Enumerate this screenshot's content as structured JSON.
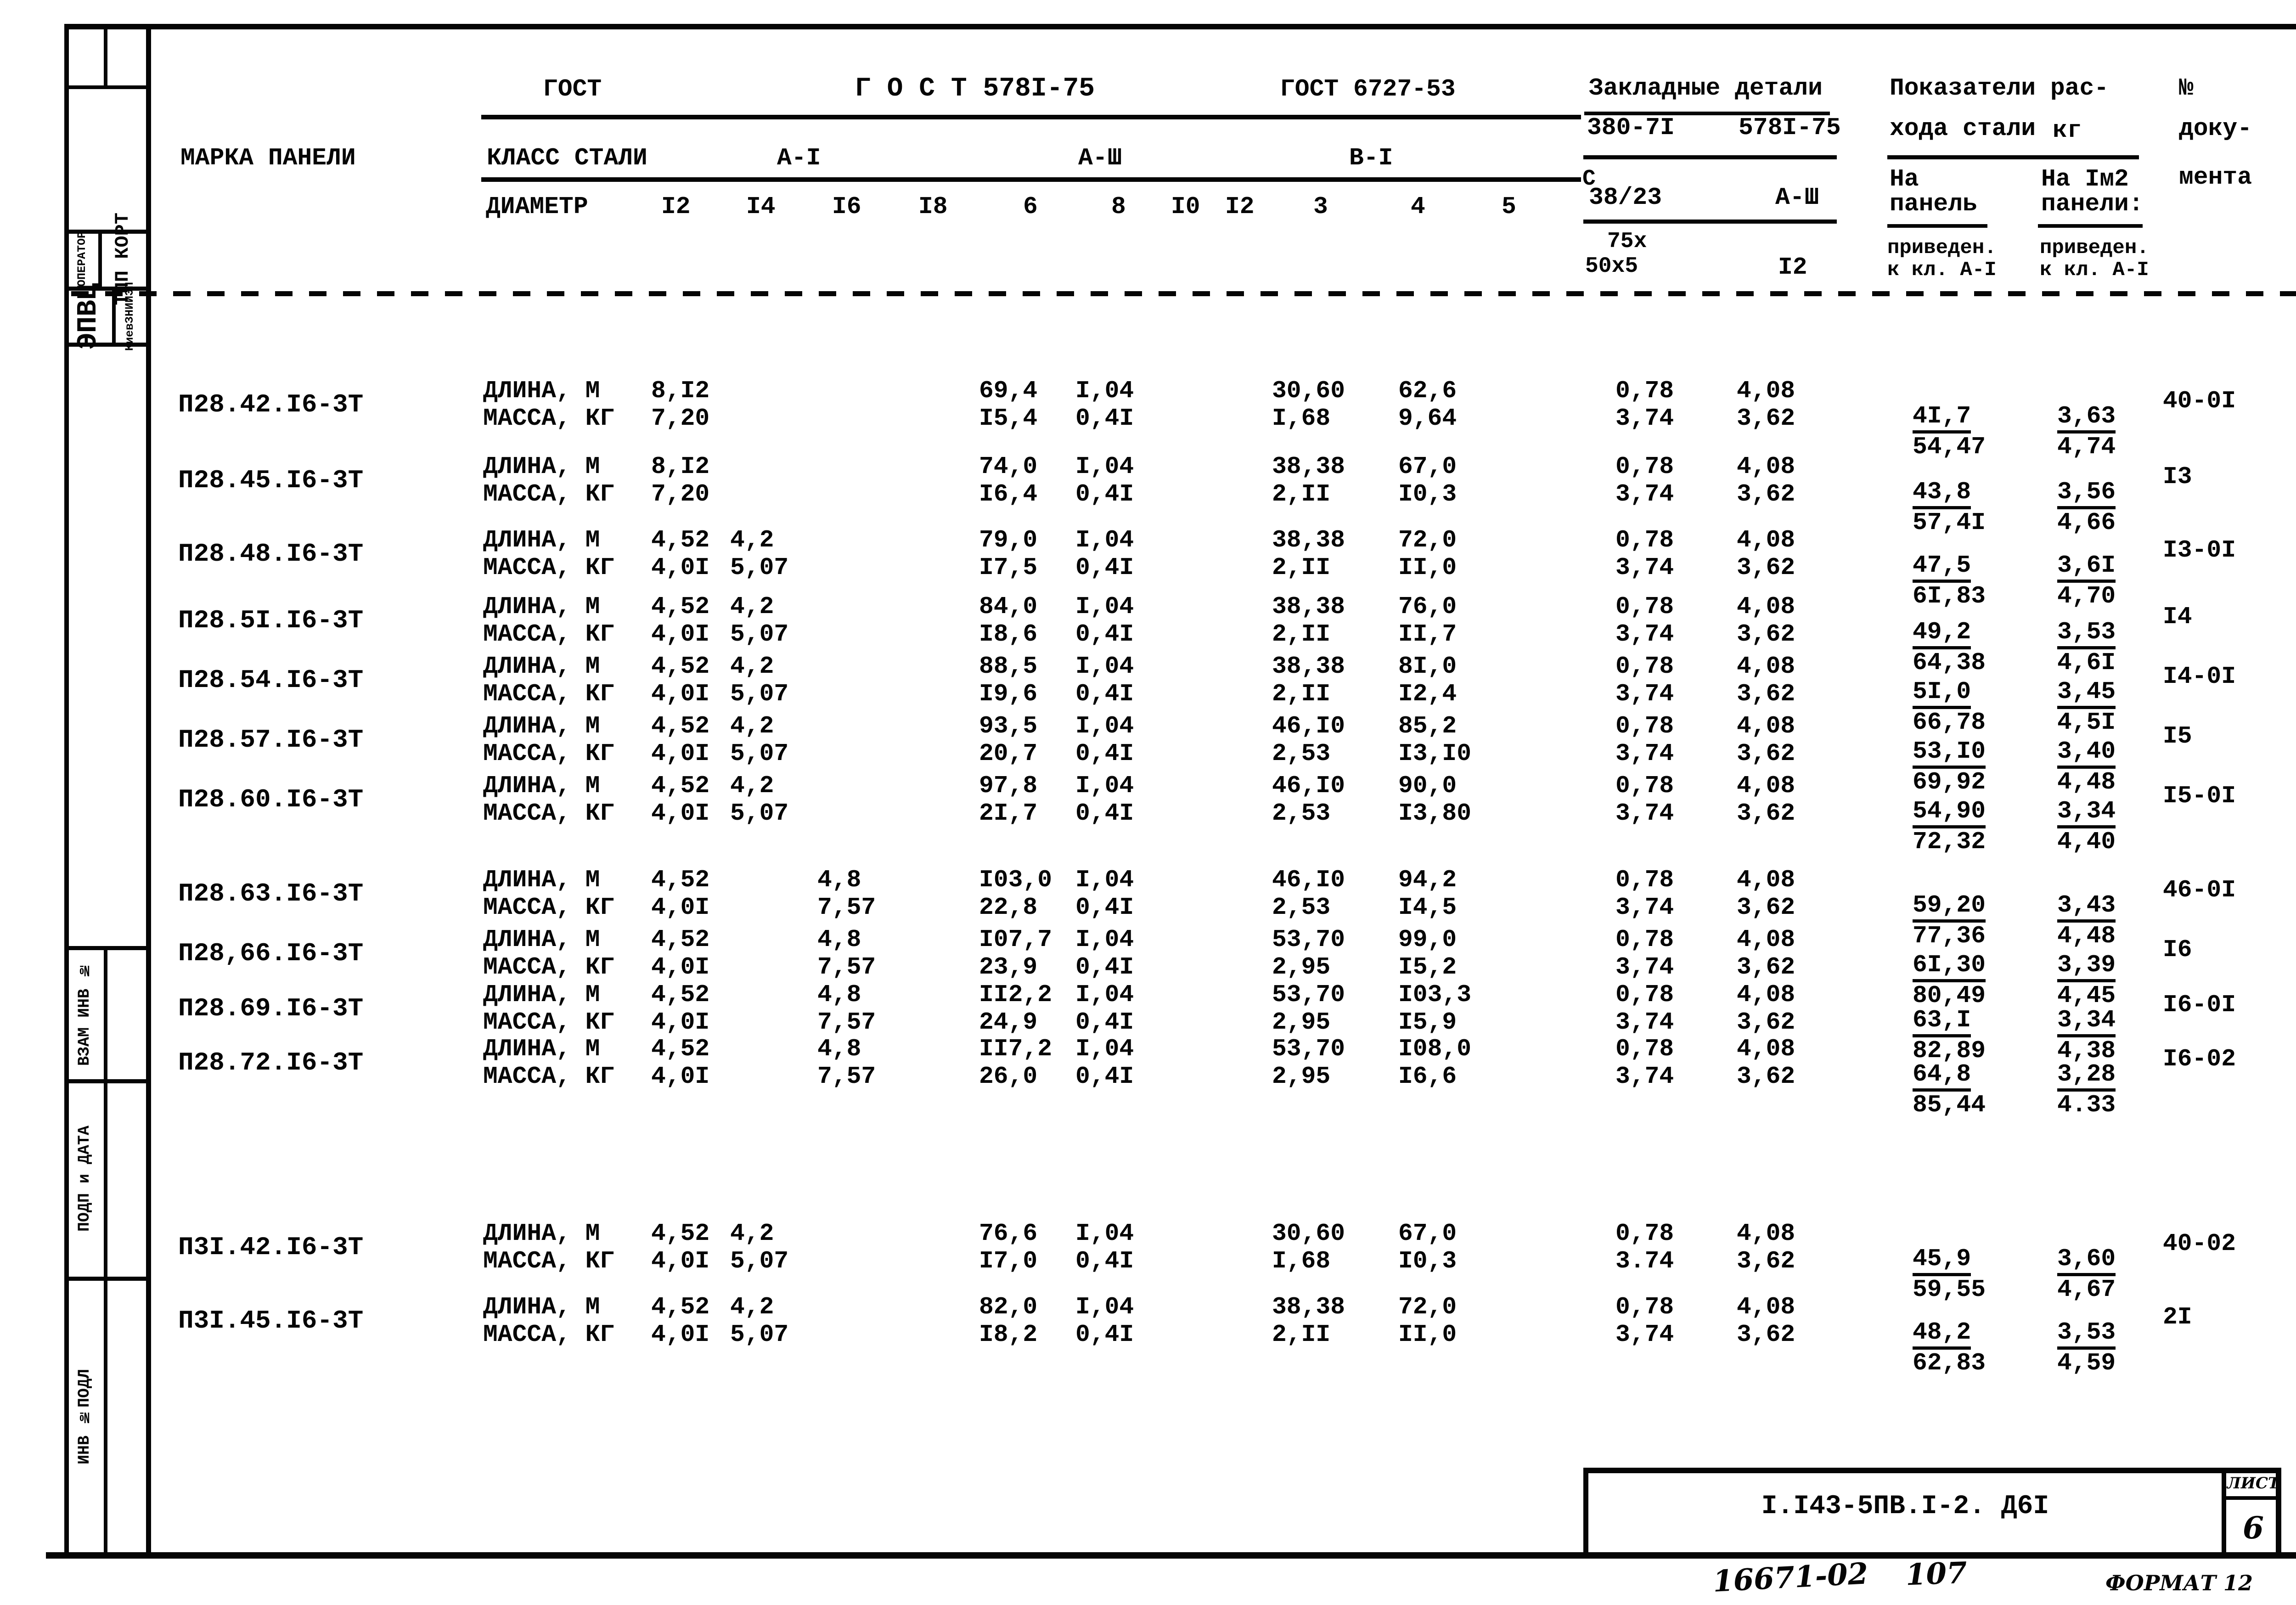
{
  "header": {
    "marka_paneli": "МАРКА ПАНЕЛИ",
    "gost": "ГОСТ",
    "gost_5781": "Г О С Т 578I-75",
    "gost_6727": "ГОСТ 6727-53",
    "klass_stali": "КЛАСС СТАЛИ",
    "a1": "А-I",
    "a3": "А-Ш",
    "b1": "В-I",
    "diametr": "ДИАМЕТР",
    "diameters": [
      "I2",
      "I4",
      "I6",
      "I8",
      "6",
      "8",
      "I0",
      "I2",
      "3",
      "4",
      "5"
    ],
    "zakladnye_detali": "Закладные детали",
    "zak_gost1": "380-7I",
    "zak_gost2": "578I-75",
    "zak_c": "С",
    "zak_38_23": "38/23",
    "zak_a3": "А-Ш",
    "zak_75x": "75х",
    "zak_50x5": "50х5",
    "zak_d12": "I2",
    "pokazateli_line1": "Показатели рас-",
    "pokazateli_line2": "хода стали",
    "kg": "кг",
    "na": "На",
    "panel": "панель",
    "na_1m2": "На Iм2",
    "paneli": "панели:",
    "priveden_1": "приведен.",
    "k_kl_1": "к кл. А-I",
    "priveden_2": "приведен.",
    "k_kl_2": "к кл. А-I",
    "no": "№",
    "doku": "доку-",
    "menta": "мента"
  },
  "row_labels": {
    "length": "ДЛИНА, М",
    "mass": "МАССА, КГ"
  },
  "rows": [
    {
      "mark": "П28.42.I6-3Т",
      "cells": {
        "d12": [
          "8,I2",
          "7,20"
        ],
        "d6": [
          "69,4",
          "I5,4"
        ],
        "d8": [
          "I,04",
          "0,4I"
        ],
        "d3": [
          "30,60",
          "I,68"
        ],
        "d4": [
          "62,6",
          "9,64"
        ],
        "e1": [
          "0,78",
          "3,74"
        ],
        "e2": [
          "4,08",
          "3,62"
        ]
      },
      "panel": [
        "4I,7",
        "54,47"
      ],
      "per_m2": [
        "3,63",
        "4,74"
      ],
      "doc": "40-0I"
    },
    {
      "mark": "П28.45.I6-3Т",
      "cells": {
        "d12": [
          "8,I2",
          "7,20"
        ],
        "d6": [
          "74,0",
          "I6,4"
        ],
        "d8": [
          "I,04",
          "0,4I"
        ],
        "d3": [
          "38,38",
          "2,II"
        ],
        "d4": [
          "67,0",
          "I0,3"
        ],
        "e1": [
          "0,78",
          "3,74"
        ],
        "e2": [
          "4,08",
          "3,62"
        ]
      },
      "panel": [
        "43,8",
        "57,4I"
      ],
      "per_m2": [
        "3,56",
        "4,66"
      ],
      "doc": "I3"
    },
    {
      "mark": "П28.48.I6-3Т",
      "cells": {
        "d12": [
          "4,52",
          "4,0I"
        ],
        "d14": [
          "4,2",
          "5,07"
        ],
        "d6": [
          "79,0",
          "I7,5"
        ],
        "d8": [
          "I,04",
          "0,4I"
        ],
        "d3": [
          "38,38",
          "2,II"
        ],
        "d4": [
          "72,0",
          "II,0"
        ],
        "e1": [
          "0,78",
          "3,74"
        ],
        "e2": [
          "4,08",
          "3,62"
        ]
      },
      "panel": [
        "47,5",
        "6I,83"
      ],
      "per_m2": [
        "3,6I",
        "4,70"
      ],
      "doc": "I3-0I"
    },
    {
      "mark": "П28.5I.I6-3Т",
      "cells": {
        "d12": [
          "4,52",
          "4,0I"
        ],
        "d14": [
          "4,2",
          "5,07"
        ],
        "d6": [
          "84,0",
          "I8,6"
        ],
        "d8": [
          "I,04",
          "0,4I"
        ],
        "d3": [
          "38,38",
          "2,II"
        ],
        "d4": [
          "76,0",
          "II,7"
        ],
        "e1": [
          "0,78",
          "3,74"
        ],
        "e2": [
          "4,08",
          "3,62"
        ]
      },
      "panel": [
        "49,2",
        "64,38"
      ],
      "per_m2": [
        "3,53",
        "4,6I"
      ],
      "doc": "I4"
    },
    {
      "mark": "П28.54.I6-3Т",
      "cells": {
        "d12": [
          "4,52",
          "4,0I"
        ],
        "d14": [
          "4,2",
          "5,07"
        ],
        "d6": [
          "88,5",
          "I9,6"
        ],
        "d8": [
          "I,04",
          "0,4I"
        ],
        "d3": [
          "38,38",
          "2,II"
        ],
        "d4": [
          "8I,0",
          "I2,4"
        ],
        "e1": [
          "0,78",
          "3,74"
        ],
        "e2": [
          "4,08",
          "3,62"
        ]
      },
      "panel": [
        "5I,0",
        "66,78"
      ],
      "per_m2": [
        "3,45",
        "4,5I"
      ],
      "doc": "I4-0I"
    },
    {
      "mark": "П28.57.I6-3Т",
      "cells": {
        "d12": [
          "4,52",
          "4,0I"
        ],
        "d14": [
          "4,2",
          "5,07"
        ],
        "d6": [
          "93,5",
          "20,7"
        ],
        "d8": [
          "I,04",
          "0,4I"
        ],
        "d3": [
          "46,I0",
          "2,53"
        ],
        "d4": [
          "85,2",
          "I3,I0"
        ],
        "e1": [
          "0,78",
          "3,74"
        ],
        "e2": [
          "4,08",
          "3,62"
        ]
      },
      "panel": [
        "53,I0",
        "69,92"
      ],
      "per_m2": [
        "3,40",
        "4,48"
      ],
      "doc": "I5"
    },
    {
      "mark": "П28.60.I6-3Т",
      "cells": {
        "d12": [
          "4,52",
          "4,0I"
        ],
        "d14": [
          "4,2",
          "5,07"
        ],
        "d6": [
          "97,8",
          "2I,7"
        ],
        "d8": [
          "I,04",
          "0,4I"
        ],
        "d3": [
          "46,I0",
          "2,53"
        ],
        "d4": [
          "90,0",
          "I3,80"
        ],
        "e1": [
          "0,78",
          "3,74"
        ],
        "e2": [
          "4,08",
          "3,62"
        ]
      },
      "panel": [
        "54,90",
        "72,32"
      ],
      "per_m2": [
        "3,34",
        "4,40"
      ],
      "doc": "I5-0I"
    },
    {
      "mark": "П28.63.I6-3Т",
      "cells": {
        "d12": [
          "4,52",
          "4,0I"
        ],
        "d16": [
          "4,8",
          "7,57"
        ],
        "d6": [
          "I03,0",
          "22,8"
        ],
        "d8": [
          "I,04",
          "0,4I"
        ],
        "d3": [
          "46,I0",
          "2,53"
        ],
        "d4": [
          "94,2",
          "I4,5"
        ],
        "e1": [
          "0,78",
          "3,74"
        ],
        "e2": [
          "4,08",
          "3,62"
        ]
      },
      "panel": [
        "59,20",
        "77,36"
      ],
      "per_m2": [
        "3,43",
        "4,48"
      ],
      "doc": "46-0I"
    },
    {
      "mark": "П28,66.I6-3Т",
      "cells": {
        "d12": [
          "4,52",
          "4,0I"
        ],
        "d16": [
          "4,8",
          "7,57"
        ],
        "d6": [
          "I07,7",
          "23,9"
        ],
        "d8": [
          "I,04",
          "0,4I"
        ],
        "d3": [
          "53,70",
          "2,95"
        ],
        "d4": [
          "99,0",
          "I5,2"
        ],
        "e1": [
          "0,78",
          "3,74"
        ],
        "e2": [
          "4,08",
          "3,62"
        ]
      },
      "panel": [
        "6I,30",
        "80,49"
      ],
      "per_m2": [
        "3,39",
        "4,45"
      ],
      "doc": "I6"
    },
    {
      "mark": "П28.69.I6-3Т",
      "cells": {
        "d12": [
          "4,52",
          "4,0I"
        ],
        "d16": [
          "4,8",
          "7,57"
        ],
        "d6": [
          "II2,2",
          "24,9"
        ],
        "d8": [
          "I,04",
          "0,4I"
        ],
        "d3": [
          "53,70",
          "2,95"
        ],
        "d4": [
          "I03,3",
          "I5,9"
        ],
        "e1": [
          "0,78",
          "3,74"
        ],
        "e2": [
          "4,08",
          "3,62"
        ]
      },
      "panel": [
        "63,I",
        "82,89"
      ],
      "per_m2": [
        "3,34",
        "4,38"
      ],
      "doc": "I6-0I"
    },
    {
      "mark": "П28.72.I6-3Т",
      "cells": {
        "d12": [
          "4,52",
          "4,0I"
        ],
        "d16": [
          "4,8",
          "7,57"
        ],
        "d6": [
          "II7,2",
          "26,0"
        ],
        "d8": [
          "I,04",
          "0,4I"
        ],
        "d3": [
          "53,70",
          "2,95"
        ],
        "d4": [
          "I08,0",
          "I6,6"
        ],
        "e1": [
          "0,78",
          "3,74"
        ],
        "e2": [
          "4,08",
          "3,62"
        ]
      },
      "panel": [
        "64,8",
        "85,44"
      ],
      "per_m2": [
        "3,28",
        "4.33"
      ],
      "doc": "I6-02"
    },
    {
      "mark": "П3I.42.I6-3Т",
      "cells": {
        "d12": [
          "4,52",
          "4,0I"
        ],
        "d14": [
          "4,2",
          "5,07"
        ],
        "d6": [
          "76,6",
          "I7,0"
        ],
        "d8": [
          "I,04",
          "0,4I"
        ],
        "d3": [
          "30,60",
          "I,68"
        ],
        "d4": [
          "67,0",
          "I0,3"
        ],
        "e1": [
          "0,78",
          "3.74"
        ],
        "e2": [
          "4,08",
          "3,62"
        ]
      },
      "panel": [
        "45,9",
        "59,55"
      ],
      "per_m2": [
        "3,60",
        "4,67"
      ],
      "doc": "40-02"
    },
    {
      "mark": "П3I.45.I6-3Т",
      "cells": {
        "d12": [
          "4,52",
          "4,0I"
        ],
        "d14": [
          "4,2",
          "5,07"
        ],
        "d6": [
          "82,0",
          "I8,2"
        ],
        "d8": [
          "I,04",
          "0,4I"
        ],
        "d3": [
          "38,38",
          "2,II"
        ],
        "d4": [
          "72,0",
          "II,0"
        ],
        "e1": [
          "0,78",
          "3,74"
        ],
        "e2": [
          "4,08",
          "3,62"
        ]
      },
      "panel": [
        "48,2",
        "62,83"
      ],
      "per_m2": [
        "3,53",
        "4,59"
      ],
      "doc": "2I"
    }
  ],
  "sidebar": {
    "operator": "ОПЕРАТОР",
    "tpp_kort": "ТПП КОРТ",
    "epvc": "ЭПВЦ",
    "kievzniiep": "КиевЗНИИЭП",
    "vzam_inv": "ВЗАМ ИНВ №",
    "podp_data": "ПОДП и ДАТА",
    "inv_podl": "ИНВ №ПОДЛ"
  },
  "titleblock": {
    "code": "I.I43-5ПВ.I-2. Д6I",
    "list_label": "ЛИСТ",
    "list_number": "6"
  },
  "handwritten": {
    "number_left": "16671-02",
    "number_mid": "107",
    "format": "ФОРМАТ 12"
  }
}
